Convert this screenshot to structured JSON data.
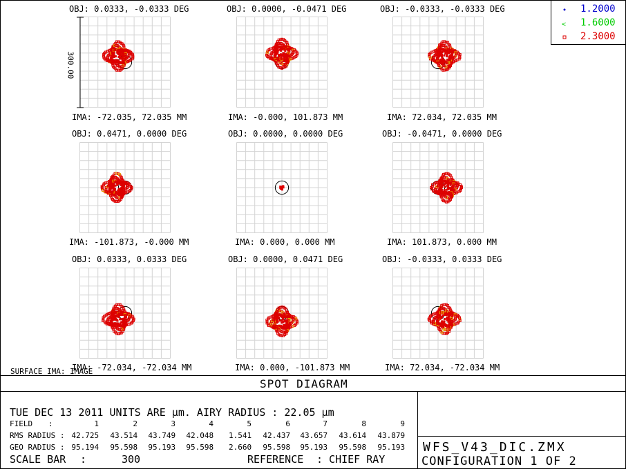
{
  "plot_title": "SPOT DIAGRAM",
  "surface_label": "SURFACE IMA: IMAGE",
  "scale_label_value": "300.00",
  "legend": [
    {
      "label": "1.2000",
      "color": "#0000cc",
      "marker": "dot"
    },
    {
      "label": "1.6000",
      "color": "#00cc00",
      "marker": "lt"
    },
    {
      "label": "2.3000",
      "color": "#dd0000",
      "marker": "square"
    }
  ],
  "fields": [
    {
      "obj": "OBJ: 0.0333, -0.0333 DEG",
      "ima": "IMA: -72.035, 72.035 MM"
    },
    {
      "obj": "OBJ: 0.0000, -0.0471 DEG",
      "ima": "IMA: -0.000, 101.873 MM"
    },
    {
      "obj": "OBJ: -0.0333, -0.0333 DEG",
      "ima": "IMA: 72.034, 72.035 MM"
    },
    {
      "obj": "OBJ: 0.0471, 0.0000 DEG",
      "ima": "IMA: -101.873, -0.000 MM"
    },
    {
      "obj": "OBJ: 0.0000, 0.0000 DEG",
      "ima": "IMA: 0.000, 0.000 MM"
    },
    {
      "obj": "OBJ: -0.0471, 0.0000 DEG",
      "ima": "IMA: 101.873, 0.000 MM"
    },
    {
      "obj": "OBJ: 0.0333, 0.0333 DEG",
      "ima": "IMA: -72.034, -72.034 MM"
    },
    {
      "obj": "OBJ: 0.0000, 0.0471 DEG",
      "ima": "IMA: 0.000, -101.873 MM"
    },
    {
      "obj": "OBJ: -0.0333, 0.0333 DEG",
      "ima": "IMA: 72.034, -72.034 MM"
    }
  ],
  "info": {
    "header": "TUE DEC 13 2011  UNITS ARE µm.  AIRY RADIUS : 22.05 µm",
    "field_label": "FIELD",
    "rms_label": "RMS RADIUS :",
    "geo_label": "GEO RADIUS :",
    "scale_bar_label": "SCALE BAR",
    "scale_bar_value": "300",
    "reference_label": "REFERENCE",
    "reference_value": ": CHIEF RAY",
    "filename": "WFS_V43_DIC.ZMX",
    "configuration": "CONFIGURATION 1 OF 2"
  },
  "chart_data": {
    "type": "scatter",
    "title": "SPOT DIAGRAM",
    "units": "µm",
    "airy_radius": 22.05,
    "scale_bar": 300,
    "reference": "CHIEF RAY",
    "wavelengths": [
      "1.2000",
      "1.6000",
      "2.3000"
    ],
    "field_numbers": [
      "1",
      "2",
      "3",
      "4",
      "5",
      "6",
      "7",
      "8",
      "9"
    ],
    "rms_radius": [
      "42.725",
      "43.514",
      "43.749",
      "42.048",
      "1.541",
      "42.437",
      "43.657",
      "43.614",
      "43.879"
    ],
    "geo_radius": [
      "95.194",
      "95.598",
      "95.193",
      "95.598",
      "2.660",
      "95.598",
      "95.193",
      "95.598",
      "95.193"
    ],
    "spot_offsets": [
      {
        "field": "1",
        "x": -22.0,
        "y": 20.0
      },
      {
        "field": "2",
        "x": 0.0,
        "y": 28.0
      },
      {
        "field": "3",
        "x": 22.0,
        "y": 20.0
      },
      {
        "field": "4",
        "x": -28.0,
        "y": 0.0
      },
      {
        "field": "5",
        "x": 0.0,
        "y": 0.0
      },
      {
        "field": "6",
        "x": 28.0,
        "y": 0.0
      },
      {
        "field": "7",
        "x": -22.0,
        "y": -20.0
      },
      {
        "field": "8",
        "x": 0.0,
        "y": -28.0
      },
      {
        "field": "9",
        "x": 22.0,
        "y": -20.0
      }
    ]
  }
}
